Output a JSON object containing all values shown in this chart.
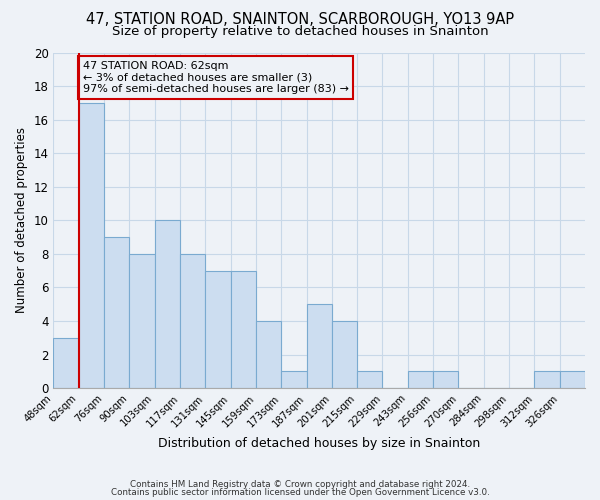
{
  "title": "47, STATION ROAD, SNAINTON, SCARBOROUGH, YO13 9AP",
  "subtitle": "Size of property relative to detached houses in Snainton",
  "xlabel": "Distribution of detached houses by size in Snainton",
  "ylabel": "Number of detached properties",
  "bar_color": "#ccddf0",
  "bar_edge_color": "#7aaad0",
  "grid_color": "#c8d8e8",
  "annotation_line_color": "#cc0000",
  "annotation_box_edge": "#cc0000",
  "bins": [
    "48sqm",
    "62sqm",
    "76sqm",
    "90sqm",
    "103sqm",
    "117sqm",
    "131sqm",
    "145sqm",
    "159sqm",
    "173sqm",
    "187sqm",
    "201sqm",
    "215sqm",
    "229sqm",
    "243sqm",
    "256sqm",
    "270sqm",
    "284sqm",
    "298sqm",
    "312sqm",
    "326sqm"
  ],
  "values": [
    3,
    17,
    9,
    8,
    10,
    8,
    7,
    7,
    4,
    1,
    5,
    4,
    1,
    0,
    1,
    1,
    0,
    0,
    0,
    1,
    1
  ],
  "ylim": [
    0,
    20
  ],
  "yticks": [
    0,
    2,
    4,
    6,
    8,
    10,
    12,
    14,
    16,
    18,
    20
  ],
  "property_line_bin_index": 1,
  "annotation_text_line1": "47 STATION ROAD: 62sqm",
  "annotation_text_line2": "← 3% of detached houses are smaller (3)",
  "annotation_text_line3": "97% of semi-detached houses are larger (83) →",
  "footer_line1": "Contains HM Land Registry data © Crown copyright and database right 2024.",
  "footer_line2": "Contains public sector information licensed under the Open Government Licence v3.0.",
  "background_color": "#eef2f7",
  "title_fontsize": 10.5,
  "subtitle_fontsize": 9.5
}
